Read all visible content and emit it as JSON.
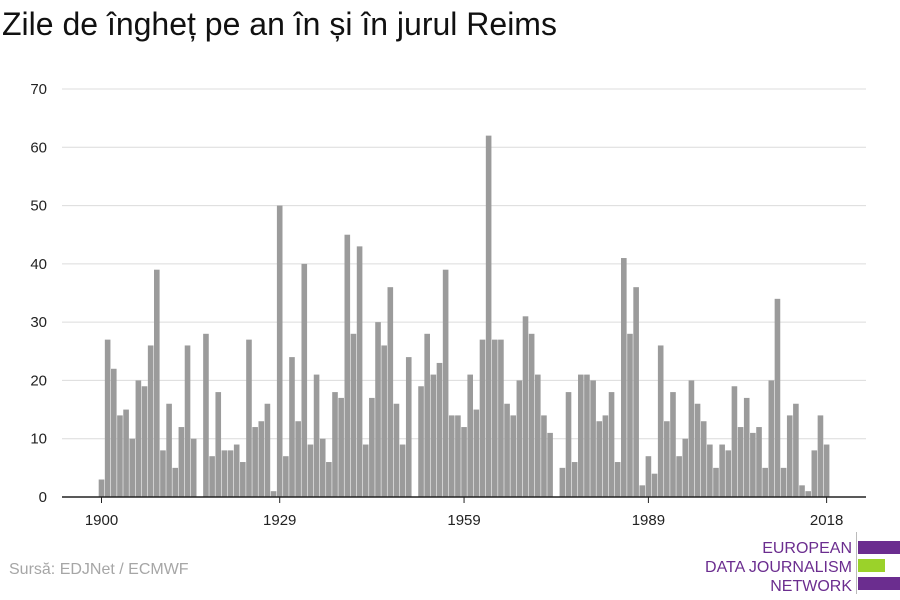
{
  "title": "Zile de îngheț pe an în și în jurul Reims",
  "source": "Sursă: EDJNet / ECMWF",
  "logo": {
    "lines": [
      "EUROPEAN",
      "DATA JOURNALISM",
      "NETWORK"
    ],
    "colors": {
      "text": "#6b2d8f",
      "bar_purple": "#6b2d8f",
      "bar_green": "#9bd22a"
    }
  },
  "chart_data": {
    "type": "bar",
    "title": "Zile de îngheț pe an în și în jurul Reims",
    "xlabel": "",
    "ylabel": "",
    "x_start": 1900,
    "x_tick_labels": [
      "1900",
      "1929",
      "1959",
      "1989",
      "2018"
    ],
    "y_ticks": [
      0,
      10,
      20,
      30,
      40,
      50,
      60,
      70
    ],
    "ylim": [
      0,
      70
    ],
    "grid": true,
    "bar_color": "#9b9b9b",
    "categories": [
      1900,
      1901,
      1902,
      1903,
      1904,
      1905,
      1906,
      1907,
      1908,
      1909,
      1910,
      1911,
      1912,
      1913,
      1914,
      1915,
      1916,
      1917,
      1918,
      1919,
      1920,
      1921,
      1922,
      1923,
      1924,
      1925,
      1926,
      1927,
      1928,
      1929,
      1930,
      1931,
      1932,
      1933,
      1934,
      1935,
      1936,
      1937,
      1938,
      1939,
      1940,
      1941,
      1942,
      1943,
      1944,
      1945,
      1946,
      1947,
      1948,
      1949,
      1950,
      1951,
      1952,
      1953,
      1954,
      1955,
      1956,
      1957,
      1958,
      1959,
      1960,
      1961,
      1962,
      1963,
      1964,
      1965,
      1966,
      1967,
      1968,
      1969,
      1970,
      1971,
      1972,
      1973,
      1974,
      1975,
      1976,
      1977,
      1978,
      1979,
      1980,
      1981,
      1982,
      1983,
      1984,
      1985,
      1986,
      1987,
      1988,
      1989,
      1990,
      1991,
      1992,
      1993,
      1994,
      1995,
      1996,
      1997,
      1998,
      1999,
      2000,
      2001,
      2002,
      2003,
      2004,
      2005,
      2006,
      2007,
      2008,
      2009,
      2010,
      2011,
      2012,
      2013,
      2014,
      2015,
      2016,
      2017,
      2018
    ],
    "values": [
      3,
      27,
      22,
      14,
      15,
      10,
      20,
      19,
      26,
      39,
      8,
      16,
      5,
      12,
      26,
      10,
      0,
      28,
      7,
      18,
      8,
      8,
      9,
      6,
      27,
      12,
      13,
      16,
      1,
      50,
      7,
      24,
      13,
      40,
      9,
      21,
      10,
      6,
      18,
      17,
      45,
      28,
      43,
      9,
      17,
      30,
      26,
      36,
      16,
      9,
      24,
      0,
      19,
      28,
      21,
      23,
      39,
      14,
      14,
      12,
      21,
      15,
      27,
      62,
      27,
      27,
      16,
      14,
      20,
      31,
      28,
      21,
      14,
      11,
      0,
      5,
      18,
      6,
      21,
      21,
      20,
      13,
      14,
      18,
      6,
      41,
      28,
      36,
      2,
      7,
      4,
      26,
      13,
      18,
      7,
      10,
      20,
      16,
      13,
      9,
      5,
      9,
      8,
      19,
      12,
      17,
      11,
      12,
      5,
      20,
      34,
      5,
      14,
      16,
      2,
      1,
      8,
      14,
      9
    ]
  }
}
